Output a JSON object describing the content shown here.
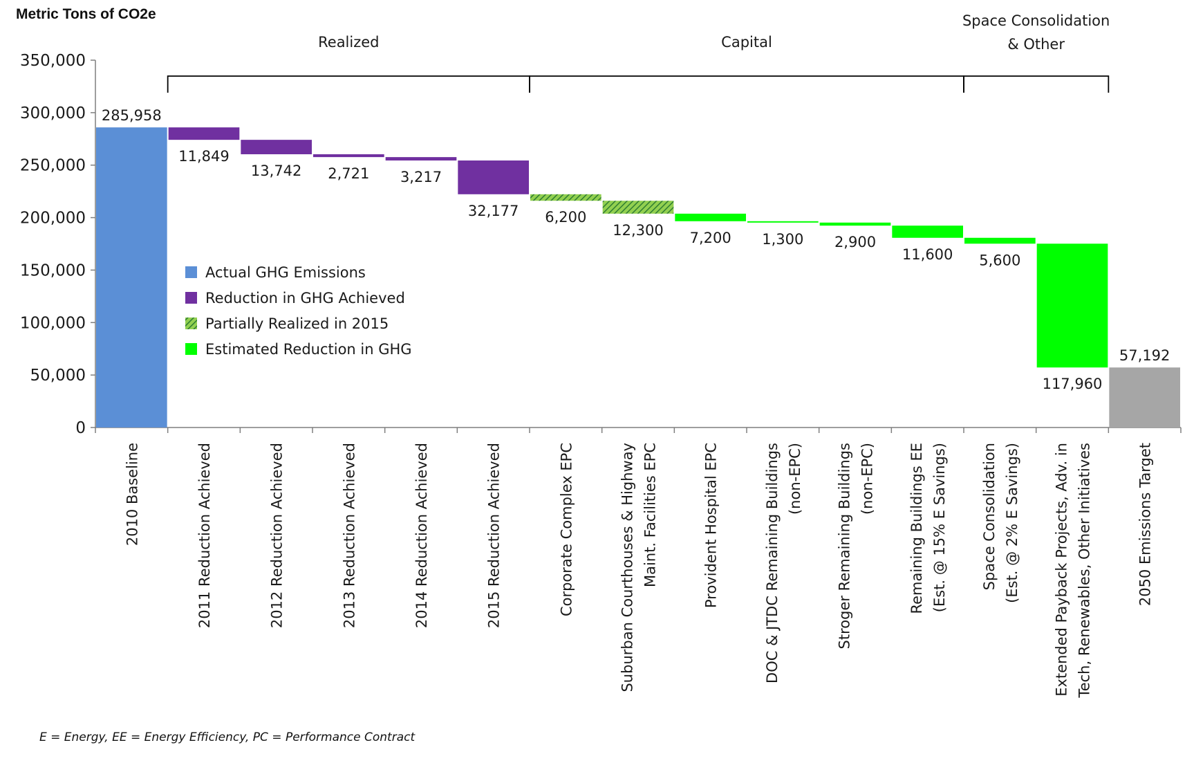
{
  "chart_data": {
    "type": "bar",
    "subtype": "waterfall",
    "ylabel": "Metric Tons of CO2e",
    "ylim": [
      0,
      350000
    ],
    "yticks": [
      "0",
      "50,000",
      "100,000",
      "150,000",
      "200,000",
      "250,000",
      "300,000",
      "350,000"
    ],
    "ytick_values": [
      0,
      50000,
      100000,
      150000,
      200000,
      250000,
      300000,
      350000
    ],
    "grid": false,
    "legend_position": "center-left",
    "colors": {
      "actual": "#5B8FD6",
      "achieved": "#7030A0",
      "partial": "#92D050",
      "partial_hatch": "#2E7D32",
      "estimated": "#00FF00",
      "target": "#A6A6A6"
    },
    "legend": [
      {
        "label": "Actual GHG Emissions",
        "kind": "actual"
      },
      {
        "label": "Reduction in GHG Achieved",
        "kind": "achieved"
      },
      {
        "label": "Partially  Realized in 2015",
        "kind": "partial"
      },
      {
        "label": "Estimated Reduction in GHG",
        "kind": "estimated"
      }
    ],
    "groups": [
      {
        "label": [
          "Realized"
        ],
        "from": 1,
        "to": 5
      },
      {
        "label": [
          "Capital"
        ],
        "from": 6,
        "to": 11
      },
      {
        "label": [
          "Space Consolidation",
          "& Other"
        ],
        "from": 12,
        "to": 13
      }
    ],
    "items": [
      {
        "category": [
          "2010 Baseline"
        ],
        "kind": "actual",
        "value": 285958,
        "label": "285,958"
      },
      {
        "category": [
          "2011 Reduction Achieved"
        ],
        "kind": "achieved",
        "value": 11849,
        "label": "11,849"
      },
      {
        "category": [
          "2012 Reduction Achieved"
        ],
        "kind": "achieved",
        "value": 13742,
        "label": "13,742"
      },
      {
        "category": [
          "2013 Reduction Achieved"
        ],
        "kind": "achieved",
        "value": 2721,
        "label": "2,721"
      },
      {
        "category": [
          "2014 Reduction Achieved"
        ],
        "kind": "achieved",
        "value": 3217,
        "label": "3,217"
      },
      {
        "category": [
          "2015 Reduction Achieved"
        ],
        "kind": "achieved",
        "value": 32177,
        "label": "32,177"
      },
      {
        "category": [
          "Corporate Complex EPC"
        ],
        "kind": "partial",
        "value": 6200,
        "label": "6,200"
      },
      {
        "category": [
          "Suburban Courthouses & Highway",
          "Maint. Facilities EPC"
        ],
        "kind": "partial",
        "value": 12300,
        "label": "12,300"
      },
      {
        "category": [
          "Provident Hospital EPC"
        ],
        "kind": "estimated",
        "value": 7200,
        "label": "7,200"
      },
      {
        "category": [
          "DOC & JTDC Remaining Buildings",
          "(non-EPC)"
        ],
        "kind": "estimated",
        "value": 1300,
        "label": "1,300"
      },
      {
        "category": [
          "Stroger Remaining Buildings",
          "(non-EPC)"
        ],
        "kind": "estimated",
        "value": 2900,
        "label": "2,900"
      },
      {
        "category": [
          "Remaining Buildings EE",
          "(Est. @ 15% E Savings)"
        ],
        "kind": "estimated",
        "value": 11600,
        "label": "11,600"
      },
      {
        "category": [
          "Space Consolidation",
          "(Est. @ 2%  E Savings)"
        ],
        "kind": "estimated",
        "value": 5600,
        "label": "5,600"
      },
      {
        "category": [
          "Extended Payback Projects, Adv. in",
          "Tech, Renewables, Other Initiatives"
        ],
        "kind": "estimated",
        "value": 117960,
        "label": "117,960"
      },
      {
        "category": [
          "2050 Emissions Target"
        ],
        "kind": "target",
        "value": 57192,
        "label": "57,192"
      }
    ]
  },
  "footnote": "E = Energy, EE = Energy Efficiency, PC = Performance Contract"
}
